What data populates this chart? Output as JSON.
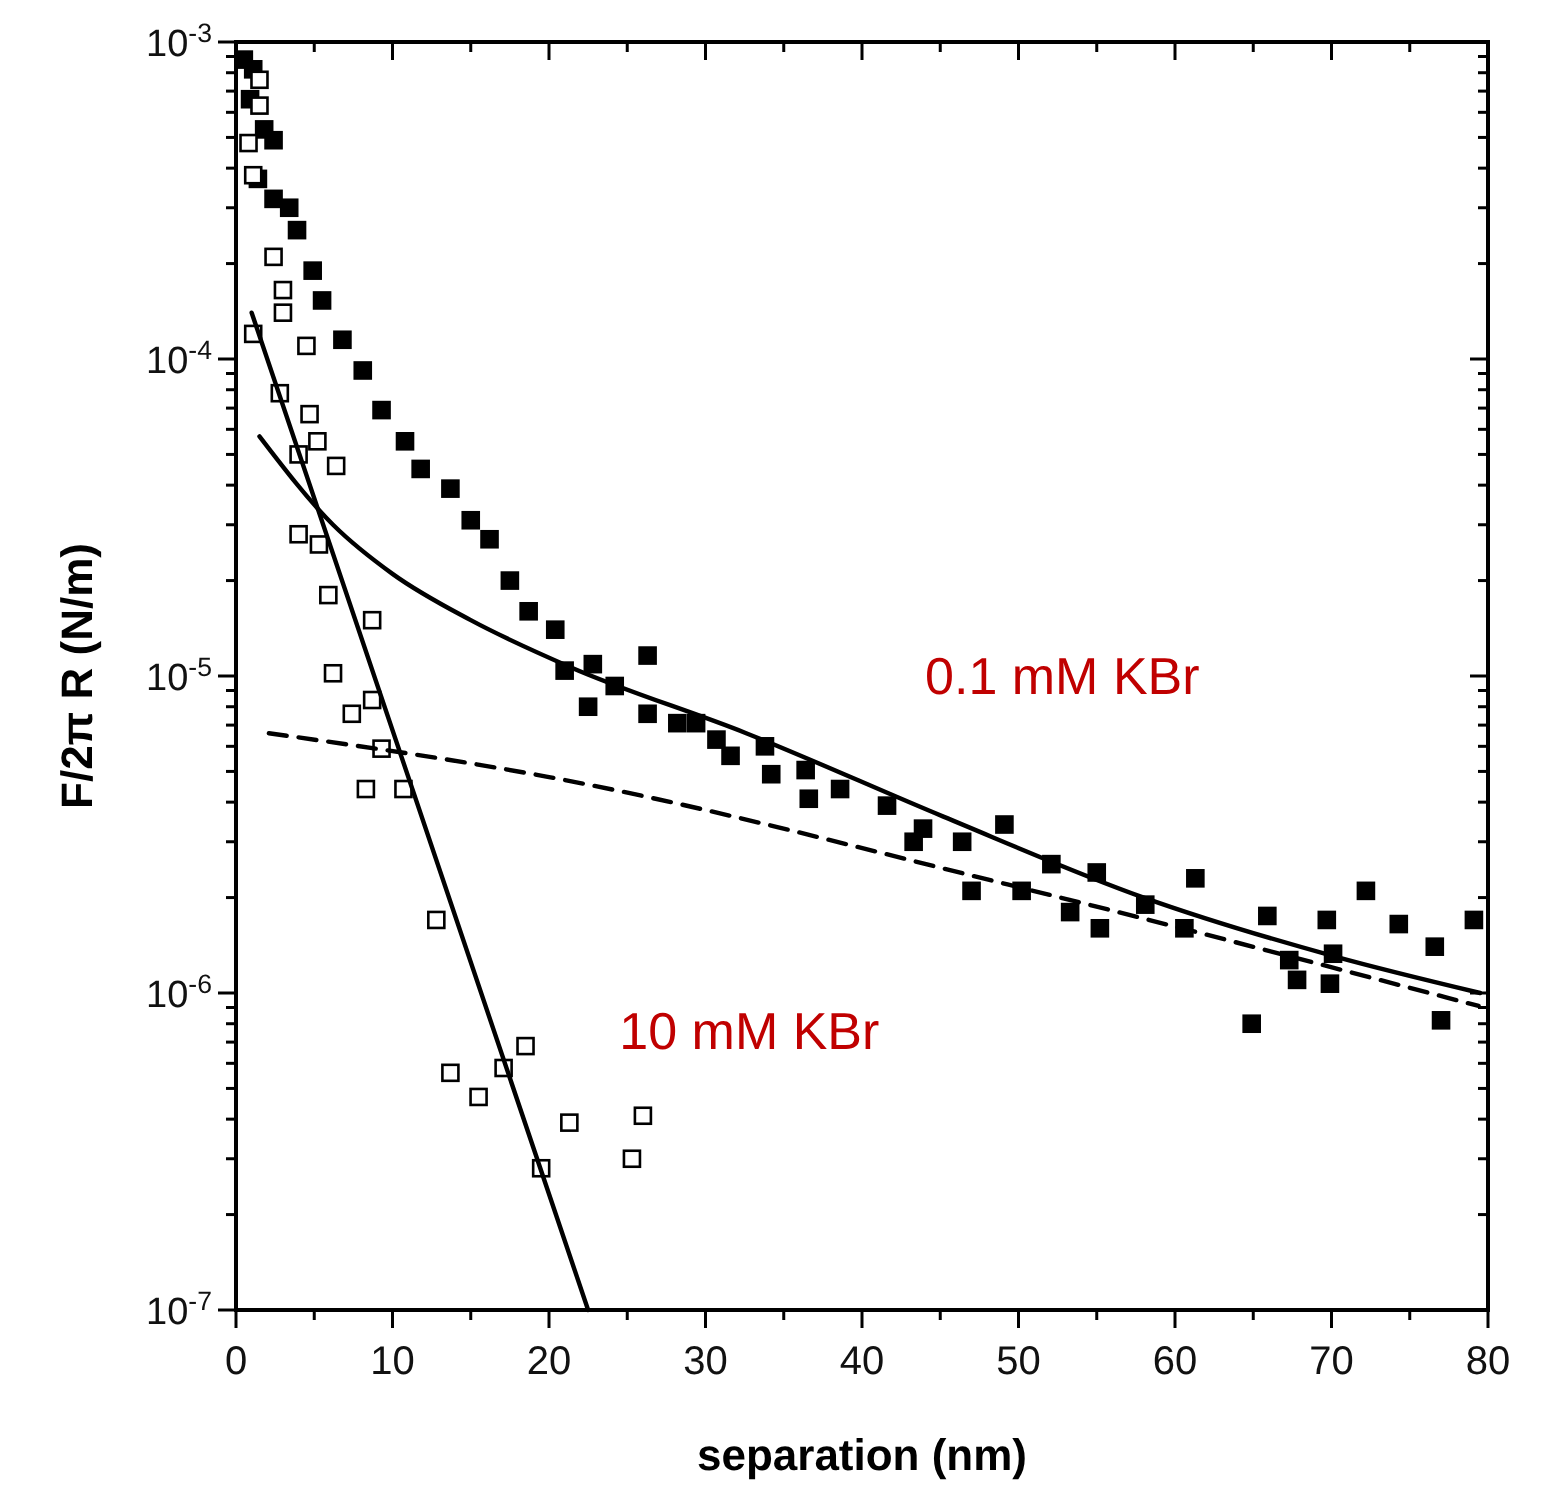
{
  "chart_data": {
    "type": "scatter",
    "xlabel": "separation (nm)",
    "ylabel": "F/2π R (N/m)",
    "log": "y",
    "grid": false,
    "xlim": [
      0,
      80
    ],
    "ylim": [
      1e-07,
      0.001
    ],
    "xticks": [
      0,
      {
        "value": 5,
        "label": null
      },
      10,
      {
        "value": 15,
        "label": null
      },
      20,
      {
        "value": 25,
        "label": null
      },
      30,
      {
        "value": 35,
        "label": null
      },
      40,
      {
        "value": 45,
        "label": null
      },
      50,
      {
        "value": 55,
        "label": null
      },
      60,
      {
        "value": 65,
        "label": null
      },
      70,
      {
        "value": 75,
        "label": null
      },
      80
    ],
    "yticks": [
      {
        "value": 1e-07,
        "label": "10$^{-7}$"
      },
      {
        "value": 2e-07,
        "label": null
      },
      {
        "value": 3e-07,
        "label": null
      },
      {
        "value": 4e-07,
        "label": null
      },
      {
        "value": 5e-07,
        "label": null
      },
      {
        "value": 6e-07,
        "label": null
      },
      {
        "value": 7e-07,
        "label": null
      },
      {
        "value": 8e-07,
        "label": null
      },
      {
        "value": 9e-07,
        "label": null
      },
      {
        "value": 1e-06,
        "label": "10$^{-6}$"
      },
      {
        "value": 2e-06,
        "label": null
      },
      {
        "value": 3e-06,
        "label": null
      },
      {
        "value": 4e-06,
        "label": null
      },
      {
        "value": 5e-06,
        "label": null
      },
      {
        "value": 6e-06,
        "label": null
      },
      {
        "value": 7e-06,
        "label": null
      },
      {
        "value": 8e-06,
        "label": null
      },
      {
        "value": 9e-06,
        "label": null
      },
      {
        "value": 1e-05,
        "label": "10$^{-5}$"
      },
      {
        "value": 2e-05,
        "label": null
      },
      {
        "value": 3e-05,
        "label": null
      },
      {
        "value": 4e-05,
        "label": null
      },
      {
        "value": 5e-05,
        "label": null
      },
      {
        "value": 6e-05,
        "label": null
      },
      {
        "value": 7e-05,
        "label": null
      },
      {
        "value": 8e-05,
        "label": null
      },
      {
        "value": 9e-05,
        "label": null
      },
      {
        "value": 0.0001,
        "label": "10$^{-4}$"
      },
      {
        "value": 0.0002,
        "label": null
      },
      {
        "value": 0.0003,
        "label": null
      },
      {
        "value": 0.0004,
        "label": null
      },
      {
        "value": 0.0005,
        "label": null
      },
      {
        "value": 0.0006,
        "label": null
      },
      {
        "value": 0.0007,
        "label": null
      },
      {
        "value": 0.0008,
        "label": null
      },
      {
        "value": 0.0009,
        "label": null
      },
      {
        "value": 0.001,
        "label": "10$^{-3}$"
      }
    ],
    "series": [
      {
        "marker": "square",
        "color": "#000000",
        "x": [
          0.5,
          1.1,
          0.9,
          1.8,
          2.4,
          1.4,
          2.4,
          3.4,
          3.9,
          4.9,
          5.5,
          6.8,
          8.1,
          9.3,
          10.8,
          11.8,
          13.7,
          15,
          16.2,
          17.5,
          18.7,
          20.4,
          21,
          22.8,
          22.5,
          26.3,
          24.2,
          26.3,
          28.2,
          29.4,
          30.7,
          31.6,
          33.8,
          34.2,
          36.4,
          36.6,
          38.6,
          41.6,
          43.3,
          43.9,
          46.4,
          47,
          49.1,
          50.2,
          52.1,
          53.3,
          55,
          55.2,
          58.1,
          60.6,
          61.3,
          64.9,
          65.9,
          67.3,
          67.8,
          69.7,
          70.1,
          69.9,
          72.2,
          74.3,
          76.6,
          77,
          79.1
        ],
        "values": [
          0.00088,
          0.00082,
          0.00066,
          0.00053,
          0.00049,
          0.00037,
          0.00032,
          0.0003,
          0.000255,
          0.00019,
          0.000153,
          0.000115,
          9.2e-05,
          6.9e-05,
          5.5e-05,
          4.5e-05,
          3.9e-05,
          3.1e-05,
          2.7e-05,
          2e-05,
          1.6e-05,
          1.4e-05,
          1.04e-05,
          1.09e-05,
          8e-06,
          1.16e-05,
          9.3e-06,
          7.6e-06,
          7.1e-06,
          7.1e-06,
          6.3e-06,
          5.6e-06,
          6e-06,
          4.9e-06,
          5.05e-06,
          4.1e-06,
          4.4e-06,
          3.9e-06,
          3e-06,
          3.3e-06,
          3e-06,
          2.1e-06,
          3.4e-06,
          2.1e-06,
          2.55e-06,
          1.8e-06,
          2.4e-06,
          1.6e-06,
          1.9e-06,
          1.6e-06,
          2.3e-06,
          8e-07,
          1.75e-06,
          1.27e-06,
          1.1e-06,
          1.7e-06,
          1.33e-06,
          1.07e-06,
          2.1e-06,
          1.65e-06,
          1.4e-06,
          8.2e-07,
          1.7e-06
        ]
      },
      {
        "marker": "square",
        "color": "#ffffff",
        "x": [
          1.5,
          1.5,
          0.8,
          1.1,
          2.4,
          3,
          3,
          4.5,
          1.1,
          2.8,
          4.7,
          5.2,
          4,
          6.4,
          4,
          5.3,
          5.9,
          8.7,
          6.2,
          7.4,
          8.7,
          9.3,
          8.3,
          10.7,
          12.8,
          13.7,
          15.5,
          17.1,
          18.5,
          19.5,
          21.3,
          25.3,
          26
        ],
        "values": [
          0.00076,
          0.00063,
          0.00048,
          0.00038,
          0.00021,
          0.000165,
          0.00014,
          0.00011,
          0.00012,
          7.8e-05,
          6.7e-05,
          5.5e-05,
          5e-05,
          4.6e-05,
          2.8e-05,
          2.6e-05,
          1.8e-05,
          1.5e-05,
          1.02e-05,
          7.6e-06,
          8.4e-06,
          5.9e-06,
          4.4e-06,
          4.4e-06,
          1.7e-06,
          5.6e-07,
          4.7e-07,
          5.8e-07,
          6.8e-07,
          2.8e-07,
          3.9e-07,
          3e-07,
          4.1e-07
        ]
      },
      {
        "type": "line",
        "marker": "none",
        "line_style": "solid",
        "color": "#000000",
        "x": [
          1.5,
          6.2,
          10,
          15,
          21.3,
          32.6,
          45.2,
          58,
          70.3,
          79.5
        ],
        "values": [
          5.7e-05,
          3e-05,
          2.1e-05,
          1.5e-05,
          1.07e-05,
          6.6e-06,
          3.6e-06,
          2e-06,
          1.3e-06,
          1e-06
        ]
      },
      {
        "type": "line",
        "marker": "none",
        "line_style": "dashed",
        "color": "#000000",
        "x": [
          2.1,
          20,
          49.3,
          79.4
        ],
        "values": [
          6.6e-06,
          4.8e-06,
          2.2e-06,
          9.1e-07
        ]
      },
      {
        "type": "line",
        "marker": "none",
        "line_style": "solid",
        "color": "#000000",
        "x": [
          1,
          22.5
        ],
        "values": [
          0.00014,
          1e-07
        ]
      }
    ],
    "annotations": [
      "0.1 mM KBr",
      "10 mM KBr"
    ]
  }
}
